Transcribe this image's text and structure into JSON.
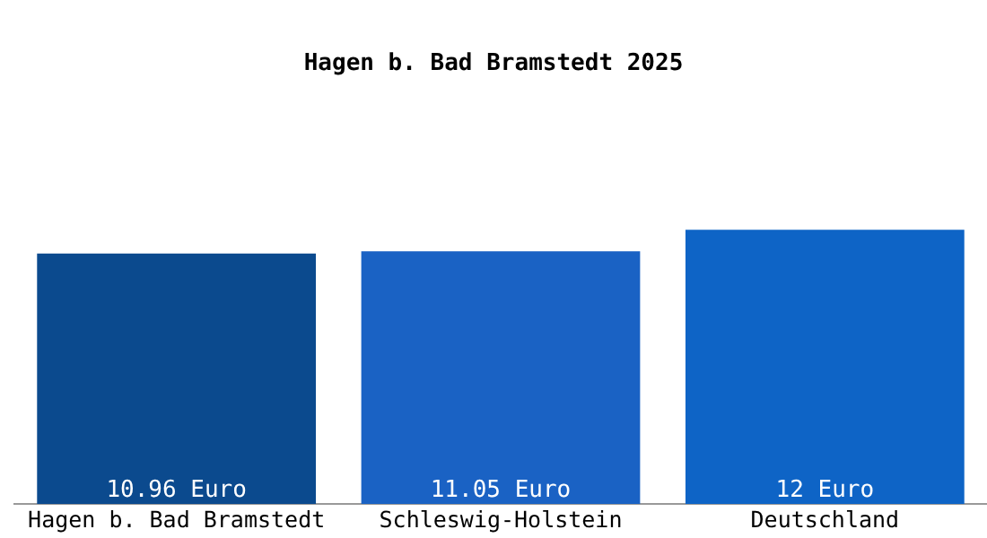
{
  "chart_data": {
    "type": "bar",
    "title": "Hagen b. Bad Bramstedt 2025",
    "categories": [
      "Hagen b. Bad Bramstedt",
      "Schleswig-Holstein",
      "Deutschland"
    ],
    "values": [
      10.96,
      11.05,
      12
    ],
    "colors": [
      "#0b4a8e",
      "#1a62c4",
      "#0e64c6"
    ],
    "value_labels": [
      "10.96 Euro",
      "11.05 Euro",
      "12 Euro"
    ],
    "grid": false,
    "legend": false
  }
}
